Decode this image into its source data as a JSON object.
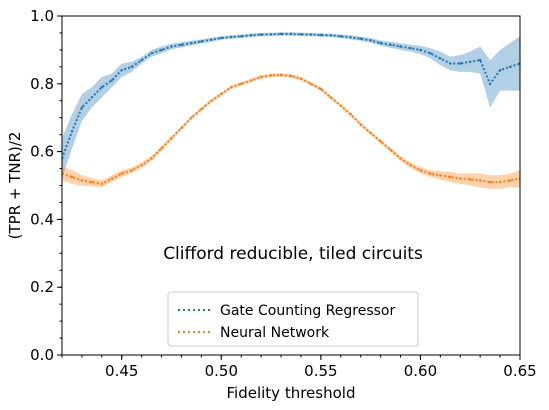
{
  "chart_data": {
    "type": "line",
    "xlabel": "Fidelity threshold",
    "ylabel": "(TPR + TNR)/2",
    "xlim": [
      0.42,
      0.65
    ],
    "ylim": [
      0.0,
      1.0
    ],
    "xticks": [
      0.45,
      0.5,
      0.55,
      0.6,
      0.65
    ],
    "xtick_labels": [
      "0.45",
      "0.50",
      "0.55",
      "0.60",
      "0.65"
    ],
    "yticks": [
      0.0,
      0.2,
      0.4,
      0.6,
      0.8,
      1.0
    ],
    "ytick_labels": [
      "0.0",
      "0.2",
      "0.4",
      "0.6",
      "0.8",
      "1.0"
    ],
    "annotation": "Clifford reducible, tiled circuits",
    "legend_position": "lower center",
    "grid": false,
    "series": [
      {
        "name": "Gate Counting Regressor",
        "color": "#1f77b4",
        "style": "dotted",
        "x": [
          0.42,
          0.425,
          0.43,
          0.435,
          0.44,
          0.445,
          0.45,
          0.455,
          0.46,
          0.465,
          0.47,
          0.475,
          0.48,
          0.485,
          0.49,
          0.495,
          0.5,
          0.505,
          0.51,
          0.515,
          0.52,
          0.525,
          0.53,
          0.535,
          0.54,
          0.545,
          0.55,
          0.555,
          0.56,
          0.565,
          0.57,
          0.575,
          0.58,
          0.585,
          0.59,
          0.595,
          0.6,
          0.605,
          0.61,
          0.615,
          0.62,
          0.625,
          0.63,
          0.635,
          0.64,
          0.645,
          0.65
        ],
        "y": [
          0.58,
          0.66,
          0.73,
          0.76,
          0.79,
          0.81,
          0.84,
          0.85,
          0.87,
          0.89,
          0.9,
          0.91,
          0.915,
          0.92,
          0.925,
          0.93,
          0.935,
          0.938,
          0.94,
          0.943,
          0.945,
          0.946,
          0.947,
          0.947,
          0.946,
          0.945,
          0.944,
          0.943,
          0.94,
          0.937,
          0.933,
          0.928,
          0.92,
          0.915,
          0.91,
          0.905,
          0.9,
          0.89,
          0.875,
          0.86,
          0.86,
          0.865,
          0.87,
          0.8,
          0.84,
          0.85,
          0.86
        ],
        "band": [
          0.06,
          0.05,
          0.04,
          0.03,
          0.03,
          0.02,
          0.02,
          0.015,
          0.01,
          0.01,
          0.01,
          0.008,
          0.008,
          0.007,
          0.006,
          0.006,
          0.005,
          0.005,
          0.005,
          0.005,
          0.005,
          0.005,
          0.005,
          0.005,
          0.005,
          0.005,
          0.005,
          0.005,
          0.005,
          0.006,
          0.006,
          0.007,
          0.008,
          0.009,
          0.01,
          0.01,
          0.012,
          0.015,
          0.02,
          0.02,
          0.025,
          0.03,
          0.04,
          0.07,
          0.06,
          0.07,
          0.08
        ]
      },
      {
        "name": "Neural Network",
        "color": "#ff7f0e",
        "style": "dotted",
        "x": [
          0.42,
          0.425,
          0.43,
          0.435,
          0.44,
          0.445,
          0.45,
          0.455,
          0.46,
          0.465,
          0.47,
          0.475,
          0.48,
          0.485,
          0.49,
          0.495,
          0.5,
          0.505,
          0.51,
          0.515,
          0.52,
          0.525,
          0.53,
          0.535,
          0.54,
          0.545,
          0.55,
          0.555,
          0.56,
          0.565,
          0.57,
          0.575,
          0.58,
          0.585,
          0.59,
          0.595,
          0.6,
          0.605,
          0.61,
          0.615,
          0.62,
          0.625,
          0.63,
          0.635,
          0.64,
          0.645,
          0.65
        ],
        "y": [
          0.535,
          0.525,
          0.515,
          0.51,
          0.505,
          0.52,
          0.535,
          0.545,
          0.56,
          0.58,
          0.61,
          0.64,
          0.67,
          0.7,
          0.725,
          0.75,
          0.77,
          0.79,
          0.8,
          0.81,
          0.82,
          0.825,
          0.826,
          0.823,
          0.815,
          0.8,
          0.785,
          0.76,
          0.735,
          0.71,
          0.68,
          0.655,
          0.63,
          0.605,
          0.58,
          0.56,
          0.545,
          0.535,
          0.53,
          0.525,
          0.52,
          0.518,
          0.515,
          0.51,
          0.51,
          0.515,
          0.52
        ],
        "band": [
          0.02,
          0.02,
          0.015,
          0.012,
          0.01,
          0.01,
          0.01,
          0.008,
          0.008,
          0.007,
          0.006,
          0.006,
          0.005,
          0.005,
          0.005,
          0.005,
          0.005,
          0.005,
          0.005,
          0.005,
          0.005,
          0.005,
          0.005,
          0.005,
          0.005,
          0.005,
          0.005,
          0.005,
          0.005,
          0.005,
          0.005,
          0.005,
          0.006,
          0.006,
          0.007,
          0.008,
          0.009,
          0.01,
          0.012,
          0.015,
          0.015,
          0.018,
          0.02,
          0.02,
          0.02,
          0.02,
          0.025
        ]
      }
    ]
  }
}
